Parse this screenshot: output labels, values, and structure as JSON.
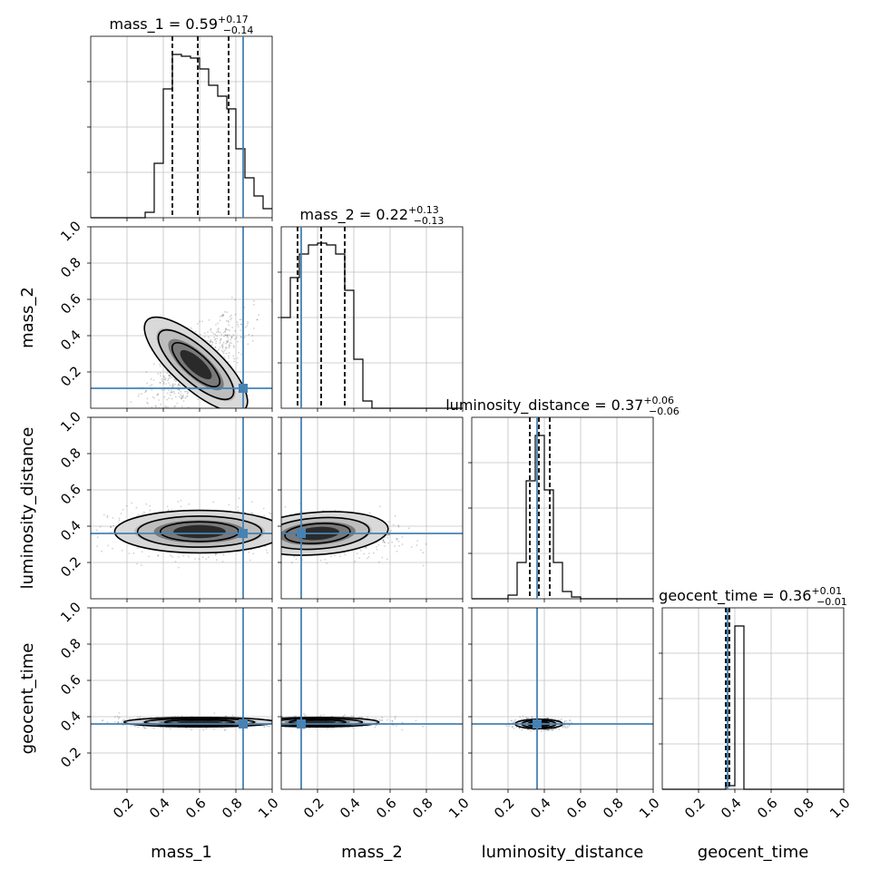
{
  "chart_data": {
    "type": "corner",
    "parameters": [
      "mass_1",
      "mass_2",
      "luminosity_distance",
      "geocent_time"
    ],
    "axis_labels": [
      "mass_1",
      "mass_2",
      "luminosity_distance",
      "geocent_time"
    ],
    "ylabels": [
      "mass_2",
      "luminosity_distance",
      "geocent_time"
    ],
    "ranges": [
      [
        0,
        1
      ],
      [
        0,
        1
      ],
      [
        0,
        1
      ],
      [
        0,
        1
      ]
    ],
    "ticks": [
      0.2,
      0.4,
      0.6,
      0.8,
      1.0
    ],
    "tick_labels": [
      "0.2",
      "0.4",
      "0.6",
      "0.8",
      "1.0"
    ],
    "grid": true,
    "titles": [
      {
        "param": "mass_1",
        "median": "0.59",
        "plus": "+0.17",
        "minus": "−0.14"
      },
      {
        "param": "mass_2",
        "median": "0.22",
        "plus": "+0.13",
        "minus": "−0.13"
      },
      {
        "param": "luminosity_distance",
        "median": "0.37",
        "plus": "+0.06",
        "minus": "−0.06"
      },
      {
        "param": "geocent_time",
        "median": "0.36",
        "plus": "+0.01",
        "minus": "−0.01"
      }
    ],
    "truths": [
      0.84,
      0.11,
      0.36,
      0.36
    ],
    "quantiles": [
      [
        0.45,
        0.59,
        0.76
      ],
      [
        0.09,
        0.22,
        0.35
      ],
      [
        0.32,
        0.37,
        0.43
      ],
      [
        0.35,
        0.36,
        0.37
      ]
    ],
    "histograms": [
      {
        "bin_edges": [
          0.0,
          0.05,
          0.1,
          0.15,
          0.2,
          0.25,
          0.3,
          0.35,
          0.4,
          0.45,
          0.5,
          0.55,
          0.6,
          0.65,
          0.7,
          0.75,
          0.8,
          0.85,
          0.9,
          0.95,
          1.0
        ],
        "counts": [
          0,
          0,
          0,
          0,
          0,
          0,
          0.03,
          0.3,
          0.71,
          0.9,
          0.89,
          0.88,
          0.82,
          0.73,
          0.67,
          0.6,
          0.38,
          0.22,
          0.12,
          0.05
        ]
      },
      {
        "bin_edges": [
          0.0,
          0.05,
          0.1,
          0.15,
          0.2,
          0.25,
          0.3,
          0.35,
          0.4,
          0.45,
          0.5,
          0.55,
          0.6,
          0.65,
          0.7,
          0.75,
          0.8,
          0.85,
          0.9,
          0.95,
          1.0
        ],
        "counts": [
          0.5,
          0.72,
          0.85,
          0.9,
          0.91,
          0.9,
          0.85,
          0.65,
          0.27,
          0.04,
          0,
          0,
          0,
          0,
          0,
          0,
          0,
          0,
          0,
          0
        ]
      },
      {
        "bin_edges": [
          0.0,
          0.05,
          0.1,
          0.15,
          0.2,
          0.25,
          0.3,
          0.35,
          0.4,
          0.45,
          0.5,
          0.55,
          0.6,
          0.65,
          0.7,
          0.75,
          0.8,
          0.85,
          0.9,
          0.95,
          1.0
        ],
        "counts": [
          0,
          0,
          0,
          0,
          0.02,
          0.2,
          0.65,
          0.9,
          0.6,
          0.2,
          0.04,
          0.01,
          0,
          0,
          0,
          0,
          0,
          0,
          0,
          0
        ]
      },
      {
        "bin_edges": [
          0.0,
          0.05,
          0.1,
          0.15,
          0.2,
          0.25,
          0.3,
          0.35,
          0.4,
          0.45,
          0.5,
          0.55,
          0.6,
          0.65,
          0.7,
          0.75,
          0.8,
          0.85,
          0.9,
          0.95,
          1.0
        ],
        "counts": [
          0,
          0,
          0,
          0,
          0,
          0,
          0,
          0.02,
          0.9,
          0,
          0,
          0,
          0,
          0,
          0,
          0,
          0,
          0,
          0,
          0
        ]
      }
    ],
    "pairs": [
      {
        "x": "mass_1",
        "y": "mass_2",
        "center": [
          0.58,
          0.24
        ],
        "spread": [
          0.14,
          0.05
        ],
        "rotation_deg": -42,
        "truth": [
          0.84,
          0.11
        ]
      },
      {
        "x": "mass_1",
        "y": "luminosity_distance",
        "center": [
          0.6,
          0.37
        ],
        "spread": [
          0.18,
          0.045
        ],
        "rotation_deg": 0,
        "truth": [
          0.84,
          0.36
        ]
      },
      {
        "x": "mass_2",
        "y": "luminosity_distance",
        "center": [
          0.2,
          0.36
        ],
        "spread": [
          0.15,
          0.045
        ],
        "rotation_deg": 4,
        "truth": [
          0.11,
          0.36
        ]
      },
      {
        "x": "mass_1",
        "y": "geocent_time",
        "center": [
          0.6,
          0.37
        ],
        "spread": [
          0.16,
          0.01
        ],
        "rotation_deg": 0,
        "truth": [
          0.84,
          0.36
        ]
      },
      {
        "x": "mass_2",
        "y": "geocent_time",
        "center": [
          0.2,
          0.37
        ],
        "spread": [
          0.13,
          0.01
        ],
        "rotation_deg": 0,
        "truth": [
          0.11,
          0.36
        ]
      },
      {
        "x": "luminosity_distance",
        "y": "geocent_time",
        "center": [
          0.37,
          0.36
        ],
        "spread": [
          0.05,
          0.01
        ],
        "rotation_deg": 0,
        "truth": [
          0.36,
          0.36
        ]
      }
    ],
    "colors": {
      "truth": "#4682b4",
      "hist": "#000000",
      "grid": "#c0c0c0",
      "density": "#000000"
    }
  }
}
